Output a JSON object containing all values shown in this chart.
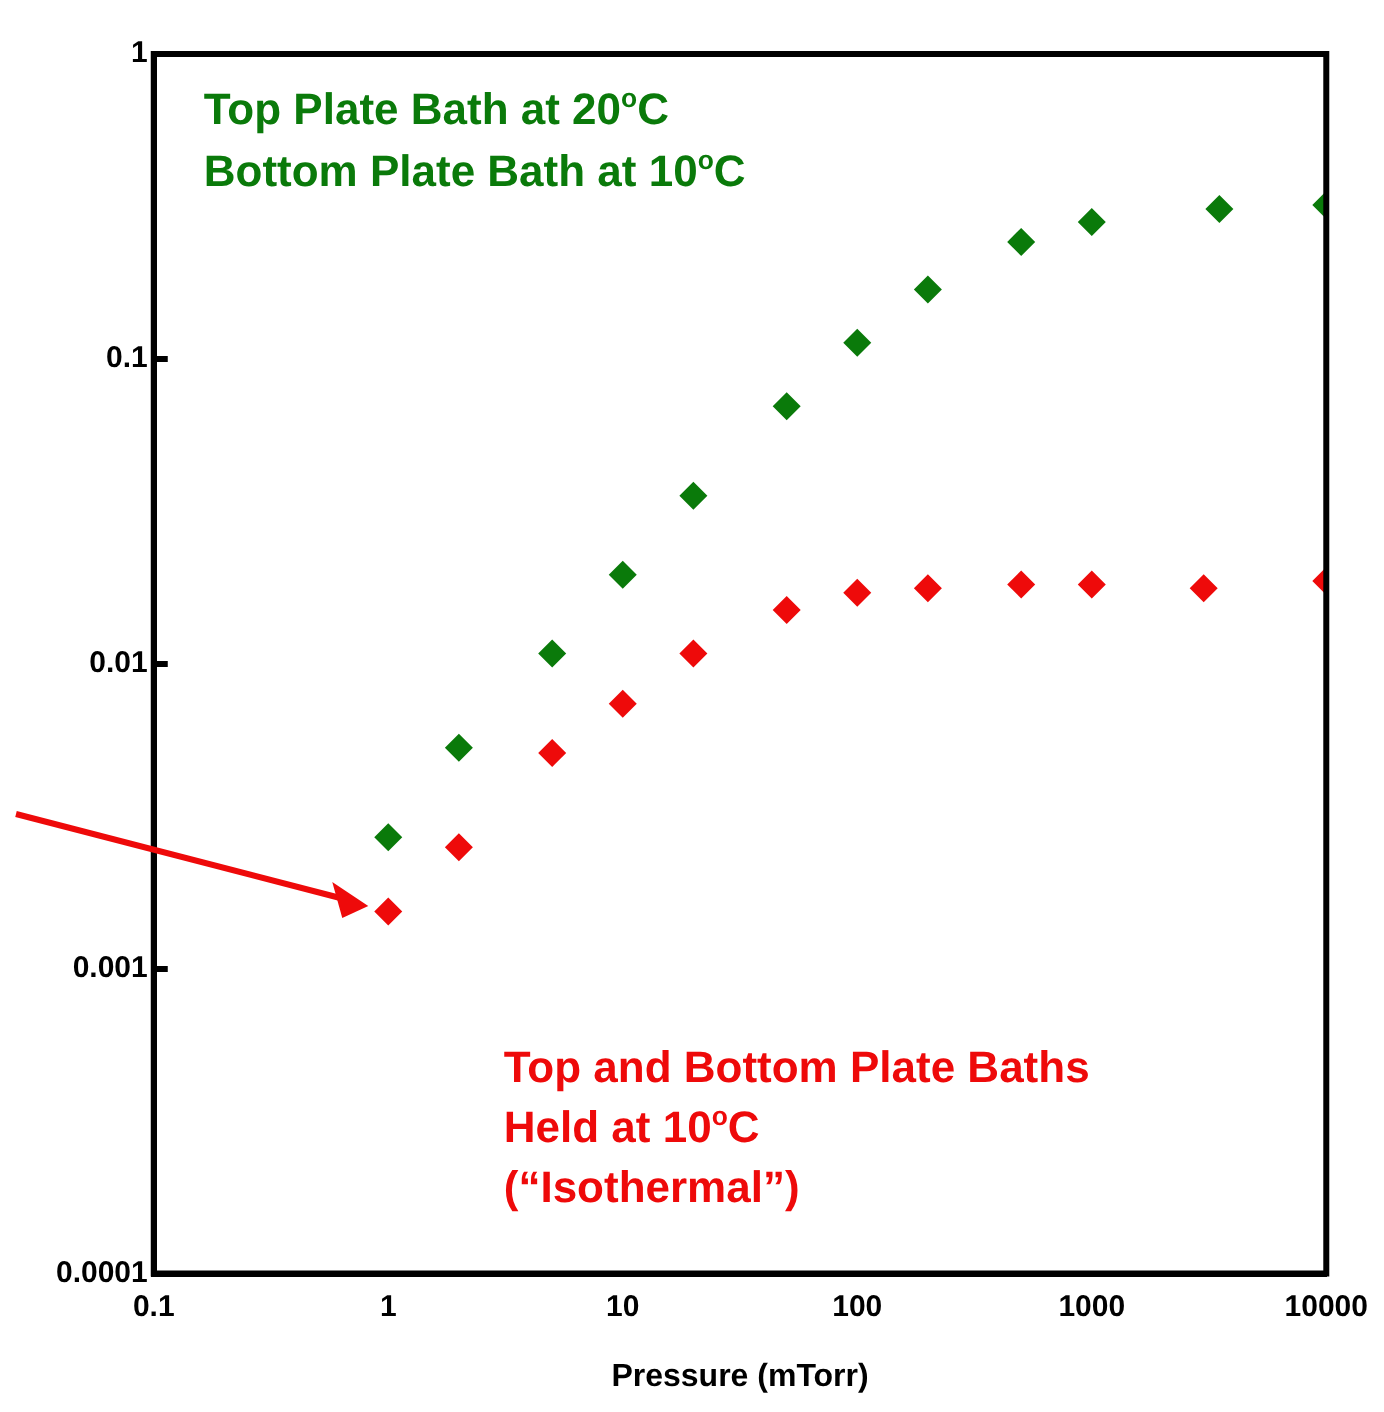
{
  "chart_data": {
    "type": "scatter",
    "xlabel": "Pressure (mTorr)",
    "log": "xy",
    "grid": false,
    "legend": false,
    "marker": "diamond",
    "xlim": [
      0.1,
      10000
    ],
    "xticks": [
      0.1,
      1,
      10,
      100,
      1000,
      10000
    ],
    "ylim": [
      0.0001,
      1
    ],
    "yticks": [
      0.0001,
      0.001,
      0.01,
      0.1,
      1
    ],
    "series": [
      {
        "name": "Top Plate Bath at 20$^{o}$C\nBottom Plate Bath at 10$^{o}$C",
        "color": "#0a7a0a",
        "x": [
          1,
          2,
          5,
          10,
          20,
          50,
          100,
          200,
          500,
          1000,
          3500,
          10000
        ],
        "values": [
          0.0027,
          0.0053,
          0.0108,
          0.0196,
          0.0356,
          0.07,
          0.113,
          0.169,
          0.242,
          0.281,
          0.31,
          0.32
        ]
      },
      {
        "name": "Top and Bottom Plate Baths\nHeld at 10$^{o}$C\n(“Isothermal”)",
        "color": "#ee0a0a",
        "x": [
          1,
          2,
          5,
          10,
          20,
          50,
          100,
          200,
          500,
          1000,
          3000,
          10000
        ],
        "values": [
          0.00154,
          0.0025,
          0.0051,
          0.0074,
          0.0108,
          0.015,
          0.0171,
          0.0177,
          0.0182,
          0.0182,
          0.0177,
          0.0187
        ]
      }
    ]
  }
}
